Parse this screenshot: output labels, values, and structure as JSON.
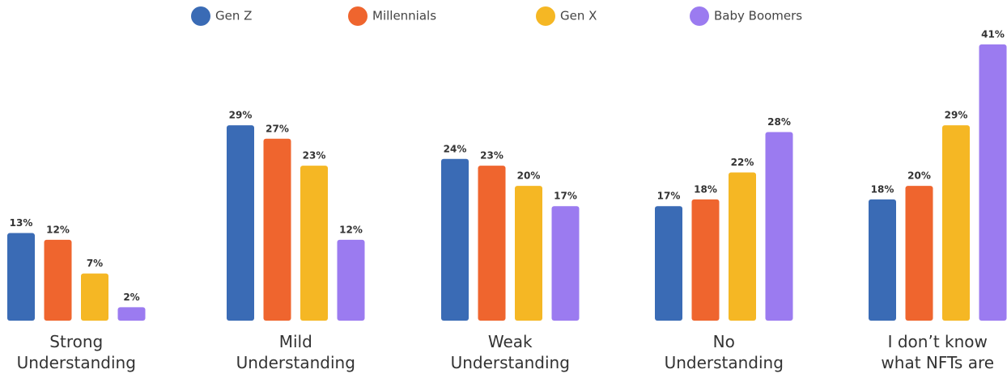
{
  "chart_data": {
    "type": "bar",
    "categories": [
      "Strong Understanding",
      "Mild Understanding",
      "Weak Understanding",
      "No Understanding",
      "I don’t know what NFTs are"
    ],
    "series": [
      {
        "name": "Gen Z",
        "color": "#3a6bb5",
        "values": [
          13,
          29,
          24,
          17,
          18
        ],
        "value_labels": [
          "13%",
          "29%",
          "24%",
          "17%",
          "18%"
        ]
      },
      {
        "name": "Millennials",
        "color": "#ef652e",
        "values": [
          12,
          27,
          23,
          18,
          20
        ],
        "value_labels": [
          "12%",
          "27%",
          "23%",
          "18%",
          "20%"
        ]
      },
      {
        "name": "Gen X",
        "color": "#f5b724",
        "values": [
          7,
          23,
          20,
          22,
          29
        ],
        "value_labels": [
          "7%",
          "23%",
          "20%",
          "22%",
          "29%"
        ]
      },
      {
        "name": "Baby Boomers",
        "color": "#9b7bf0",
        "values": [
          2,
          12,
          17,
          28,
          41
        ],
        "value_labels": [
          "2%",
          "12%",
          "17%",
          "28%",
          "41%"
        ]
      }
    ],
    "legend": "top"
  }
}
